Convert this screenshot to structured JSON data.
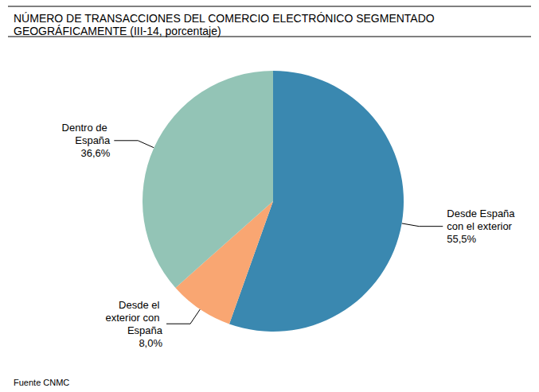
{
  "chart_data": {
    "type": "pie",
    "title": "NÚMERO DE TRANSACCIONES DEL COMERCIO ELECTRÓNICO SEGMENTADO GEOGRÁFICAMENTE (III-14, porcentaje)",
    "source": "Fuente CNMC",
    "categories": [
      "Desde España con el exterior",
      "Desde el exterior con España",
      "Dentro de España"
    ],
    "values": [
      55.5,
      8.0,
      36.6
    ],
    "value_labels": [
      "55,5%",
      "8,0%",
      "36,6%"
    ],
    "colors": [
      "#3a88b0",
      "#f9a672",
      "#93c4b6"
    ],
    "data_labels": true
  }
}
